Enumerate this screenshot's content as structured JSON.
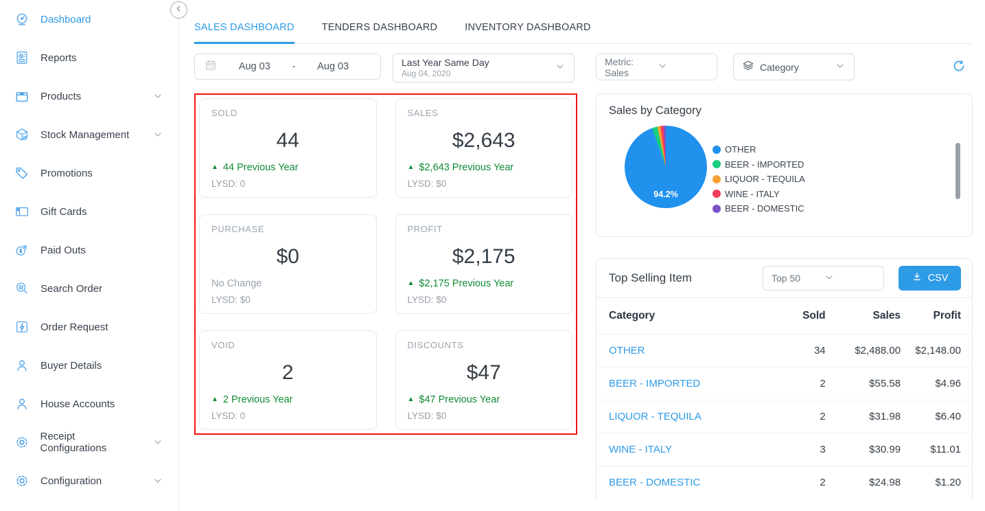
{
  "sidebar": {
    "items": [
      {
        "label": "Dashboard",
        "icon": "dashboard-icon",
        "active": true,
        "chevron": false
      },
      {
        "label": "Reports",
        "icon": "reports-icon",
        "active": false,
        "chevron": false
      },
      {
        "label": "Products",
        "icon": "products-icon",
        "active": false,
        "chevron": true
      },
      {
        "label": "Stock Management",
        "icon": "stock-management-icon",
        "active": false,
        "chevron": true
      },
      {
        "label": "Promotions",
        "icon": "promotions-icon",
        "active": false,
        "chevron": false
      },
      {
        "label": "Gift Cards",
        "icon": "gift-cards-icon",
        "active": false,
        "chevron": false
      },
      {
        "label": "Paid Outs",
        "icon": "paid-outs-icon",
        "active": false,
        "chevron": false
      },
      {
        "label": "Search Order",
        "icon": "search-order-icon",
        "active": false,
        "chevron": false
      },
      {
        "label": "Order Request",
        "icon": "order-request-icon",
        "active": false,
        "chevron": false
      },
      {
        "label": "Buyer Details",
        "icon": "buyer-details-icon",
        "active": false,
        "chevron": false
      },
      {
        "label": "House Accounts",
        "icon": "house-accounts-icon",
        "active": false,
        "chevron": false
      },
      {
        "label": "Receipt Configurations",
        "icon": "receipt-configurations-icon",
        "active": false,
        "chevron": true
      },
      {
        "label": "Configuration",
        "icon": "configuration-icon",
        "active": false,
        "chevron": true
      }
    ]
  },
  "tabs": [
    {
      "label": "SALES DASHBOARD",
      "active": true
    },
    {
      "label": "TENDERS DASHBOARD",
      "active": false
    },
    {
      "label": "INVENTORY DASHBOARD",
      "active": false
    }
  ],
  "filters": {
    "date_start": "Aug 03",
    "date_separator": "-",
    "date_end": "Aug 03",
    "compare_label": "Last Year Same Day",
    "compare_date": "Aug 04, 2020",
    "metric": "Metric: Sales",
    "grouping": "Category"
  },
  "kpi_cards": [
    {
      "label": "SOLD",
      "value": "44",
      "delta": "44 Previous Year",
      "delta_up": true,
      "lysd": "LYSD: 0"
    },
    {
      "label": "SALES",
      "value": "$2,643",
      "delta": "$2,643 Previous Year",
      "delta_up": true,
      "lysd": "LYSD: $0"
    },
    {
      "label": "PURCHASE",
      "value": "$0",
      "delta": "No Change",
      "delta_up": false,
      "lysd": "LYSD: $0"
    },
    {
      "label": "PROFIT",
      "value": "$2,175",
      "delta": "$2,175 Previous Year",
      "delta_up": true,
      "lysd": "LYSD: $0"
    },
    {
      "label": "VOID",
      "value": "2",
      "delta": "2 Previous Year",
      "delta_up": true,
      "lysd": "LYSD: 0"
    },
    {
      "label": "DISCOUNTS",
      "value": "$47",
      "delta": "$47 Previous Year",
      "delta_up": true,
      "lysd": "LYSD: $0"
    }
  ],
  "chart_data": {
    "type": "pie",
    "title": "Sales by Category",
    "center_label": "94.2%",
    "legend_position": "right",
    "slices": [
      {
        "label": "OTHER",
        "value": 94.2,
        "color": "#2191ee"
      },
      {
        "label": "BEER - IMPORTED",
        "value": 2.1,
        "color": "#17cf7d"
      },
      {
        "label": "LIQUOR - TEQUILA",
        "value": 1.2,
        "color": "#f7a233"
      },
      {
        "label": "WINE - ITALY",
        "value": 1.2,
        "color": "#f43f5a"
      },
      {
        "label": "BEER - DOMESTIC",
        "value": 0.9,
        "color": "#7b52c7"
      }
    ]
  },
  "top_selling": {
    "title": "Top Selling Item",
    "limit_selected": "Top 50",
    "csv_label": "CSV",
    "columns": [
      "Category",
      "Sold",
      "Sales",
      "Profit"
    ],
    "rows": [
      {
        "category": "OTHER",
        "sold": "34",
        "sales": "$2,488.00",
        "profit": "$2,148.00"
      },
      {
        "category": "BEER - IMPORTED",
        "sold": "2",
        "sales": "$55.58",
        "profit": "$4.96"
      },
      {
        "category": "LIQUOR - TEQUILA",
        "sold": "2",
        "sales": "$31.98",
        "profit": "$6.40"
      },
      {
        "category": "WINE - ITALY",
        "sold": "3",
        "sales": "$30.99",
        "profit": "$11.01"
      },
      {
        "category": "BEER - DOMESTIC",
        "sold": "2",
        "sales": "$24.98",
        "profit": "$1.20"
      }
    ]
  },
  "colors": {
    "accent": "#2e9be6",
    "positive": "#128a36",
    "highlight_border": "#f51313"
  },
  "glyphs": {
    "up_arrow": "▲"
  }
}
